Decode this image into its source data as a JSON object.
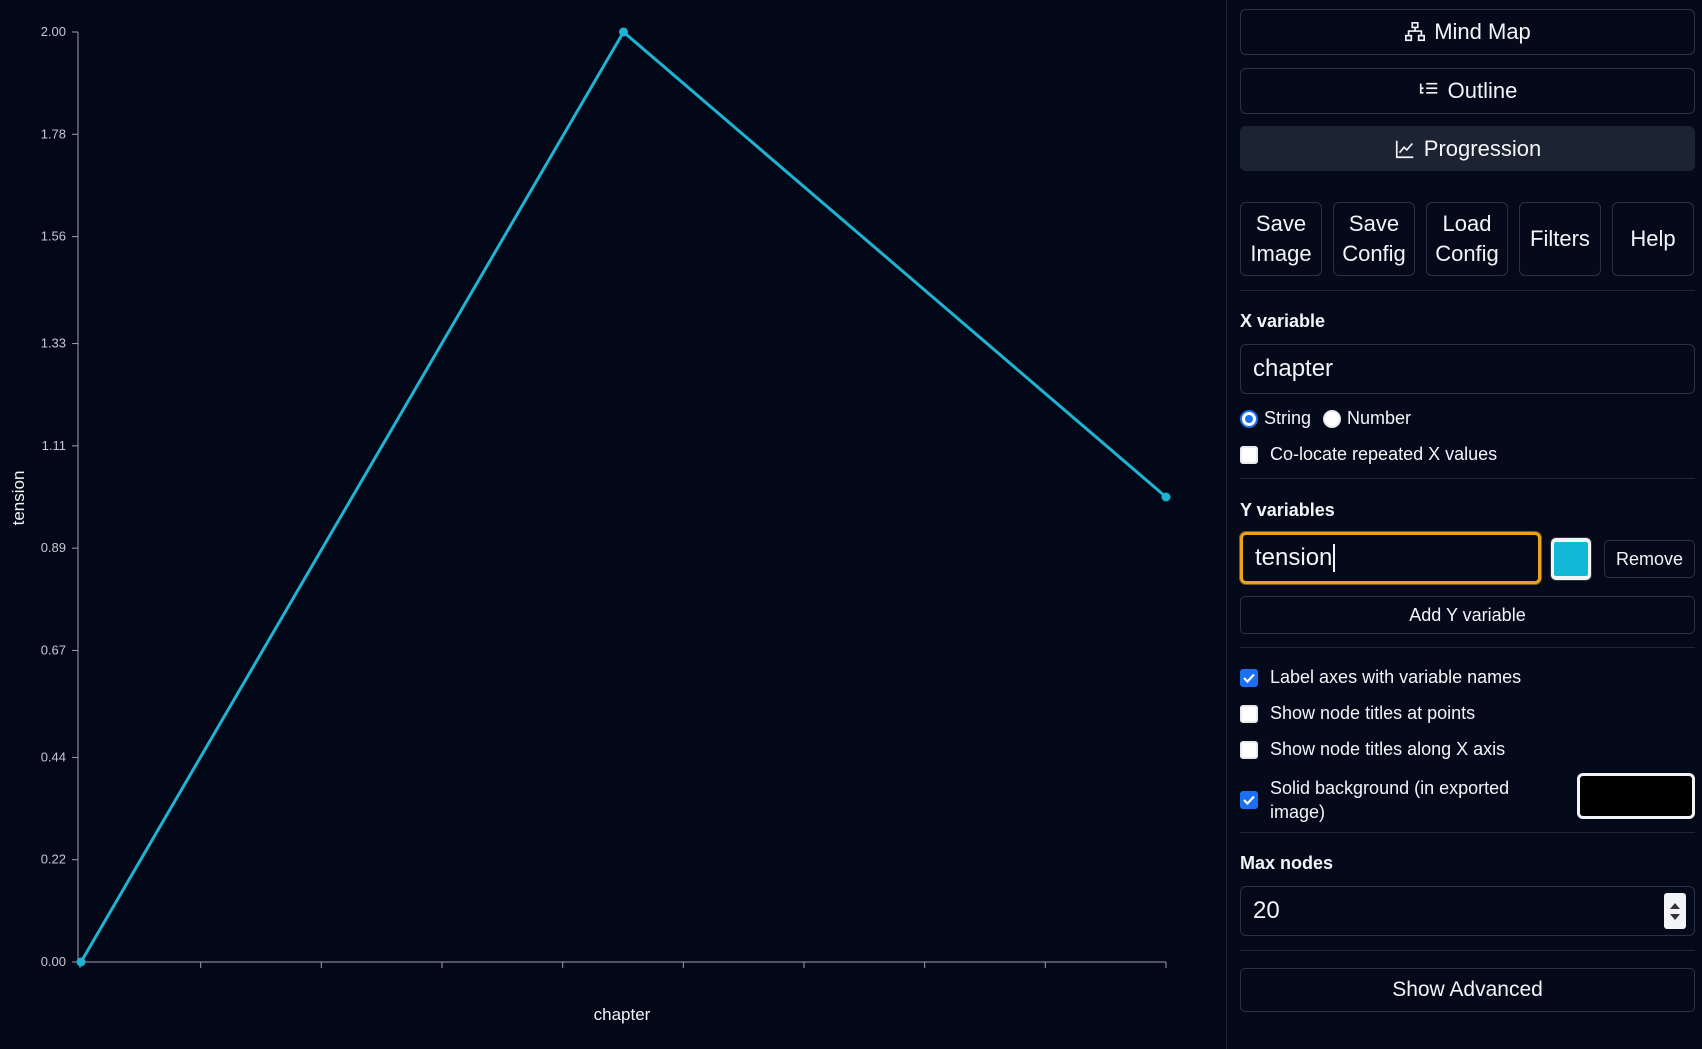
{
  "chart_data": {
    "type": "line",
    "xlabel": "chapter",
    "ylabel": "tension",
    "ylim": [
      0,
      2
    ],
    "y_ticks": [
      "0.00",
      "0.22",
      "0.44",
      "0.67",
      "0.89",
      "1.11",
      "1.33",
      "1.56",
      "1.78",
      "2.00"
    ],
    "points": [
      {
        "x_index": 0,
        "y": 0
      },
      {
        "x_index": 1,
        "y": 2
      },
      {
        "x_index": 2,
        "y": 1
      }
    ],
    "line_color": "#1fb3d2",
    "grid": false
  },
  "views": {
    "mind_map": "Mind Map",
    "outline": "Outline",
    "progression": "Progression",
    "active": "progression"
  },
  "toolbar": {
    "save_image": "Save\nImage",
    "save_config": "Save\nConfig",
    "load_config": "Load\nConfig",
    "filters": "Filters",
    "help": "Help"
  },
  "x_variable": {
    "label": "X variable",
    "value": "chapter",
    "type_string": "String",
    "type_number": "Number",
    "selected_type": "string",
    "colocate_label": "Co-locate repeated X values",
    "colocate_checked": false
  },
  "y_variables": {
    "label": "Y variables",
    "items": [
      {
        "value": "tension",
        "color": "#12b8d6",
        "remove_label": "Remove"
      }
    ],
    "add_label": "Add Y variable"
  },
  "options": {
    "label_axes": "Label axes with variable names",
    "show_titles_points": "Show node titles at points",
    "show_titles_axis": "Show node titles along X axis",
    "solid_background_line1": "Solid background (in exported",
    "solid_background_line2": "image)",
    "background_color": "#000000"
  },
  "max_nodes": {
    "label": "Max nodes",
    "value": "20"
  },
  "show_advanced": "Show Advanced"
}
